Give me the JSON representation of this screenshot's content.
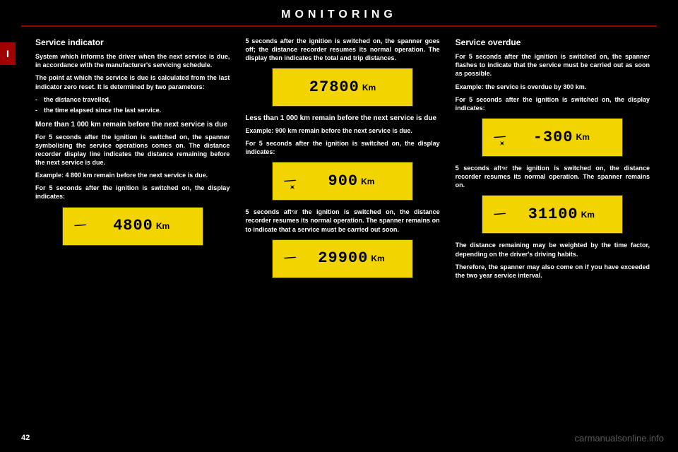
{
  "title": "MONITORING",
  "side_tab": "I",
  "page_num": "42",
  "watermark": "carmanualsonline.info",
  "col1": {
    "h1": "Service indicator",
    "p1": "System which informs the driver when the next service is due, in accordance with the manufacturer's servicing schedule.",
    "p2": "The point at which the service is due is calculated from the last indicator zero reset. It is determined by two parameters:",
    "li1": "the distance travelled,",
    "li2": "the time elapsed since the last service.",
    "sub1": "More than 1 000 km remain before the next service is due",
    "p3": "For 5 seconds after the ignition is switched on, the spanner symbolising the service operations comes on. The distance recorder display line indicates the distance remaining before the next service is due.",
    "p4": "Example: 4 800 km remain before the next service is due.",
    "p5": "For 5 seconds after the ignition is switched on, the display indicates:",
    "disp1": {
      "wrench": true,
      "value": "4800",
      "unit": "Km"
    }
  },
  "col2": {
    "p1": "5 seconds after the ignition is switched on, the spanner goes off; the distance recorder resumes its normal operation. The display then indicates the total and trip distances.",
    "disp1": {
      "wrench": false,
      "value": "27800",
      "unit": "Km"
    },
    "sub1": "Less than 1 000 km remain before the next service is due",
    "p2": "Example: 900 km remain before the next service is due.",
    "p3": "For 5 seconds after the ignition is switched on, the display indicates:",
    "disp2": {
      "wrench": true,
      "flash": true,
      "value": "900",
      "unit": "Km"
    },
    "p4": "5 seconds after the ignition is switched on, the distance recorder resumes its normal operation. The spanner remains on to indicate that a service must be carried out soon.",
    "disp3": {
      "wrench": true,
      "value": "29900",
      "unit": "Km"
    }
  },
  "col3": {
    "h1": "Service overdue",
    "p1": "For 5 seconds after the ignition is switched on, the spanner flashes to indicate that the service must be carried out as soon as possible.",
    "p2": "Example: the service is overdue by 300 km.",
    "p3": "For 5 seconds after the ignition is switched on, the display indicates:",
    "disp1": {
      "wrench": true,
      "flash": true,
      "value": "-300",
      "unit": "Km"
    },
    "p4": "5 seconds after the ignition is switched on, the distance recorder resumes its normal operation. The spanner remains on.",
    "disp2": {
      "wrench": true,
      "value": "31100",
      "unit": "Km"
    },
    "p5": "The distance remaining may be weighted by the time factor, depending on the driver's driving habits.",
    "p6": "Therefore, the spanner may also come on if you have exceeded the two year service interval."
  }
}
